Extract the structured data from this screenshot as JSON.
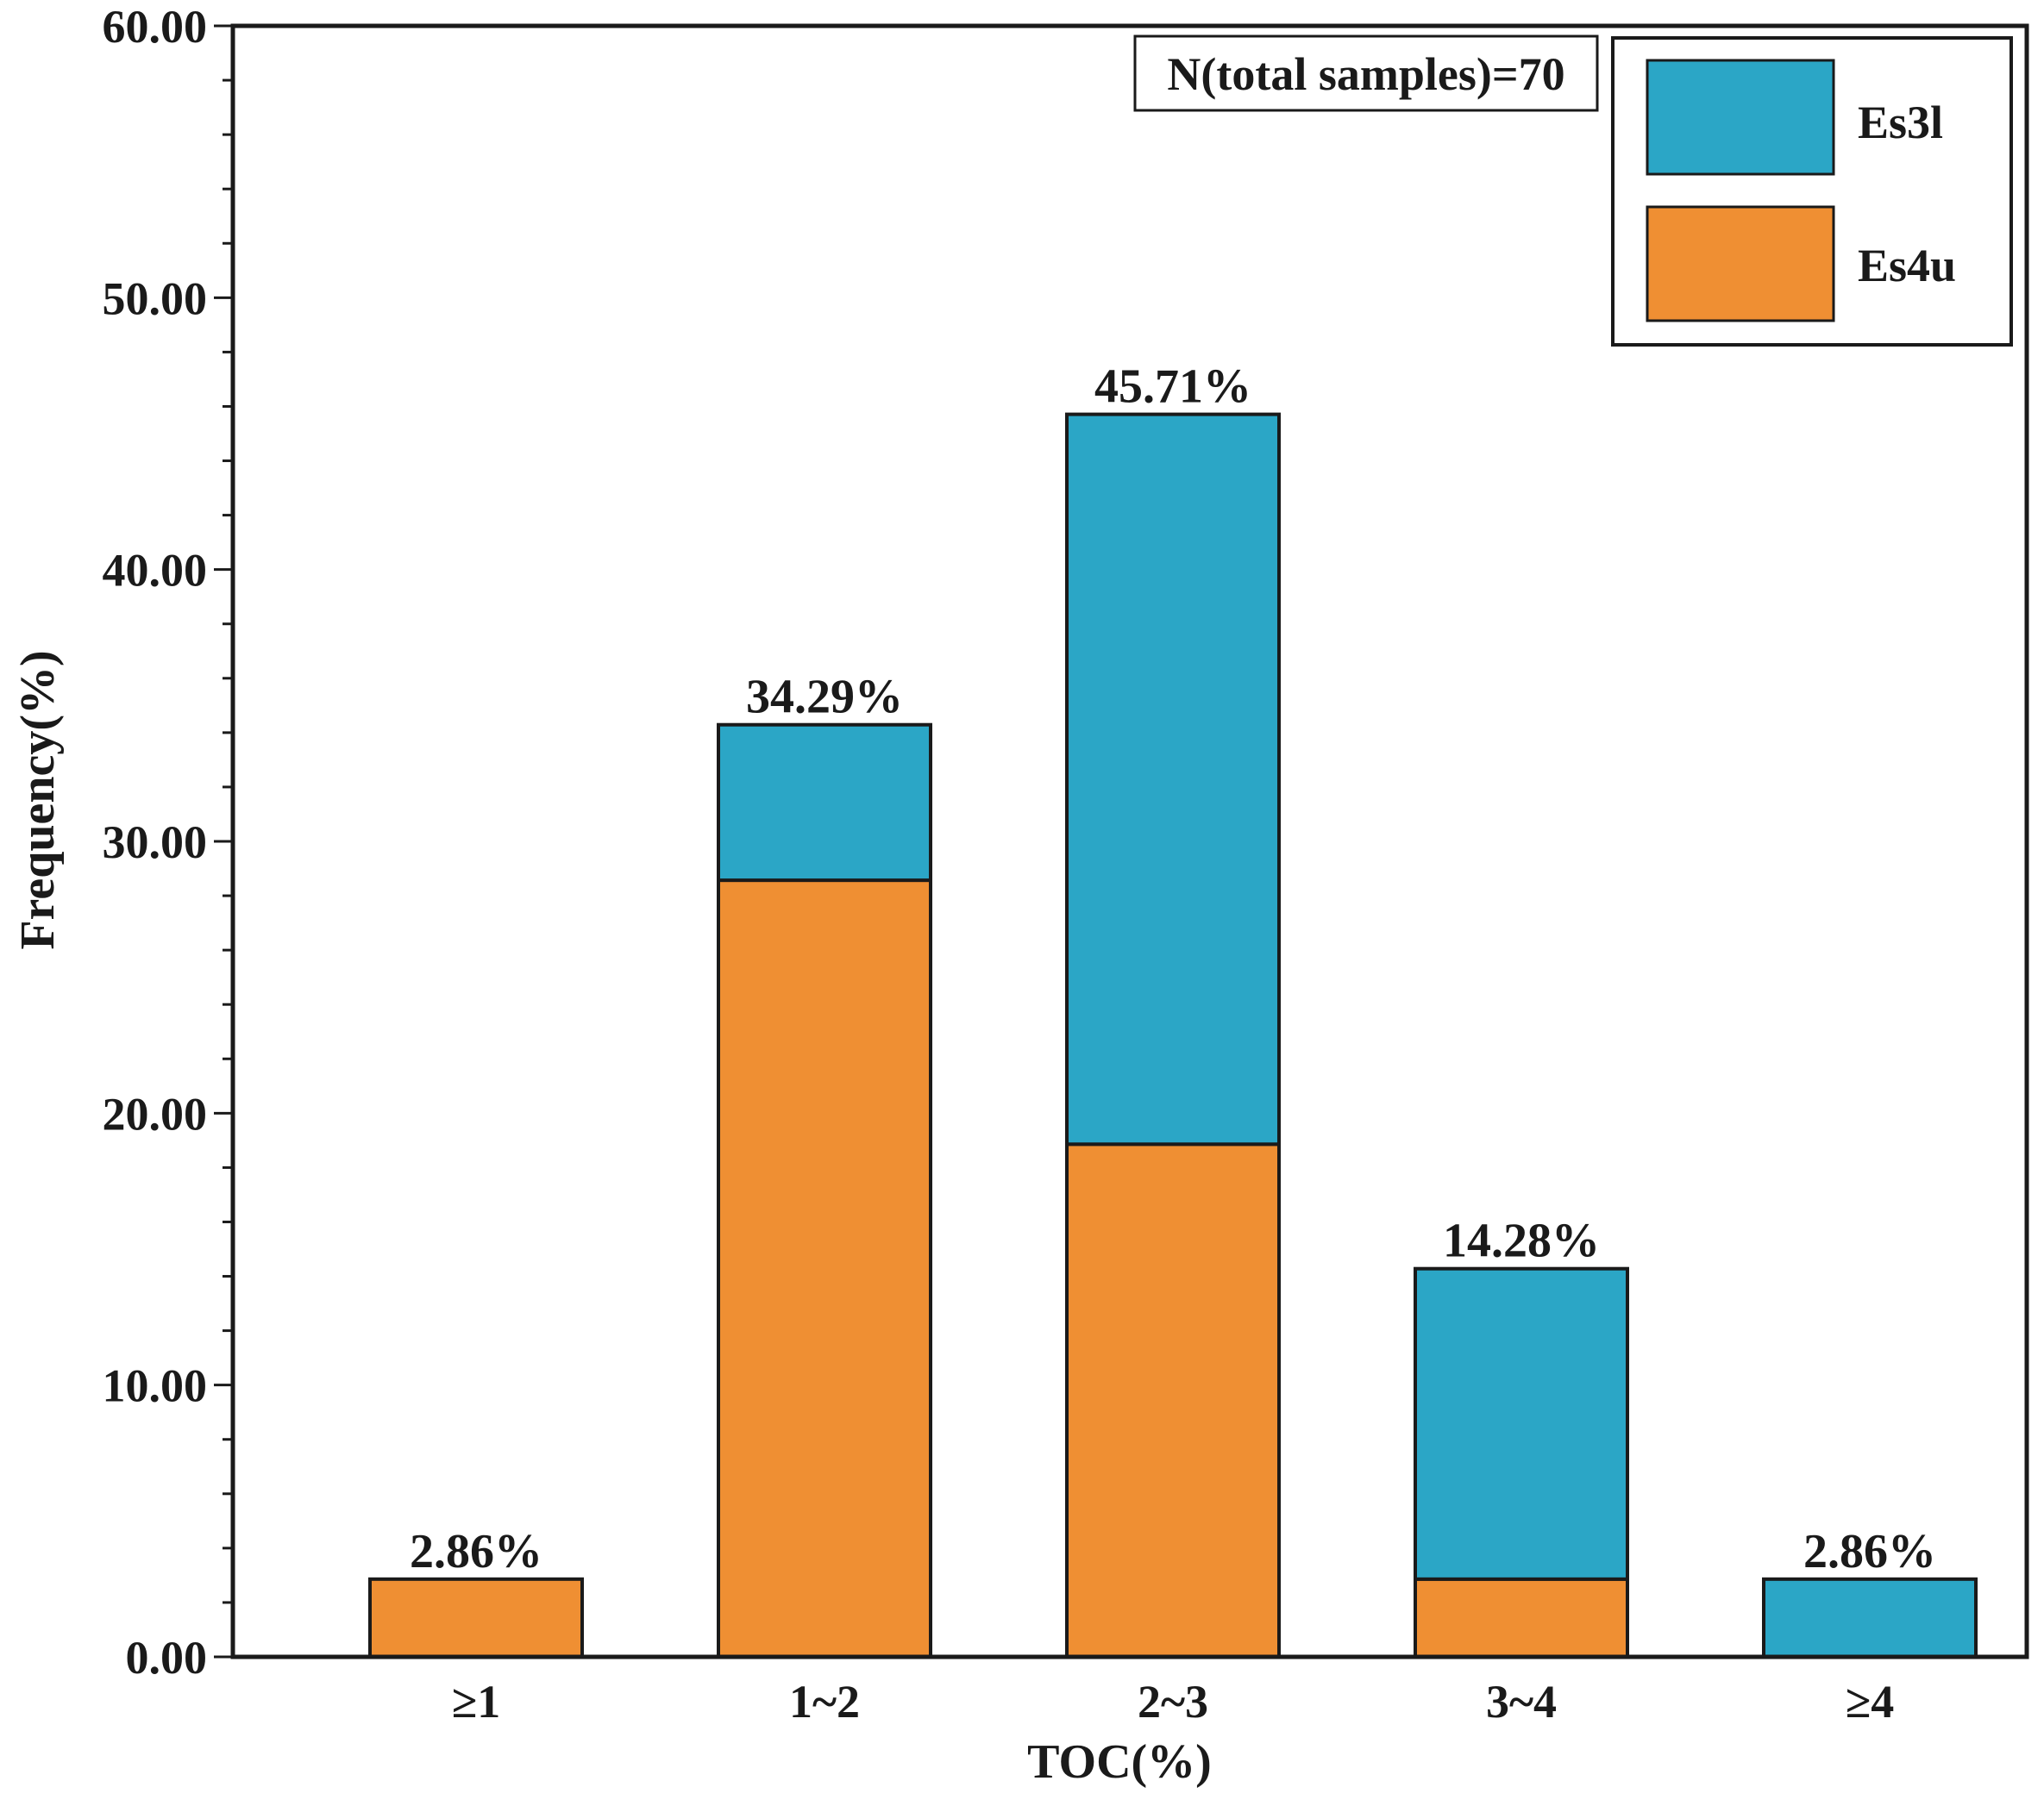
{
  "chart_data": {
    "type": "bar",
    "stacked": true,
    "categories": [
      "≥1",
      "1~2",
      "2~3",
      "3~4",
      "≥4"
    ],
    "series": [
      {
        "name": "Es4u",
        "color": "#EF8F33",
        "values": [
          2.86,
          28.57,
          18.86,
          2.86,
          0
        ]
      },
      {
        "name": "Es3l",
        "color": "#2BA6C6",
        "values": [
          0,
          5.72,
          26.85,
          11.42,
          2.86
        ]
      }
    ],
    "totals_labels": [
      "2.86%",
      "34.29%",
      "45.71%",
      "14.28%",
      "2.86%"
    ],
    "totals": [
      2.86,
      34.29,
      45.71,
      14.28,
      2.86
    ],
    "title": "",
    "xlabel": "TOC(%)",
    "ylabel": "Frequency(%)",
    "ylim": [
      0,
      60
    ],
    "yticks": [
      "0.00",
      "10.00",
      "20.00",
      "30.00",
      "40.00",
      "50.00",
      "60.00"
    ],
    "ytick_values": [
      0,
      10,
      20,
      30,
      40,
      50,
      60
    ],
    "minor_tick_step": 2,
    "grid": false,
    "legend": {
      "position": "top-right",
      "entries": [
        "Es3l",
        "Es4u"
      ]
    },
    "annotation": "N(total samples)=70"
  }
}
